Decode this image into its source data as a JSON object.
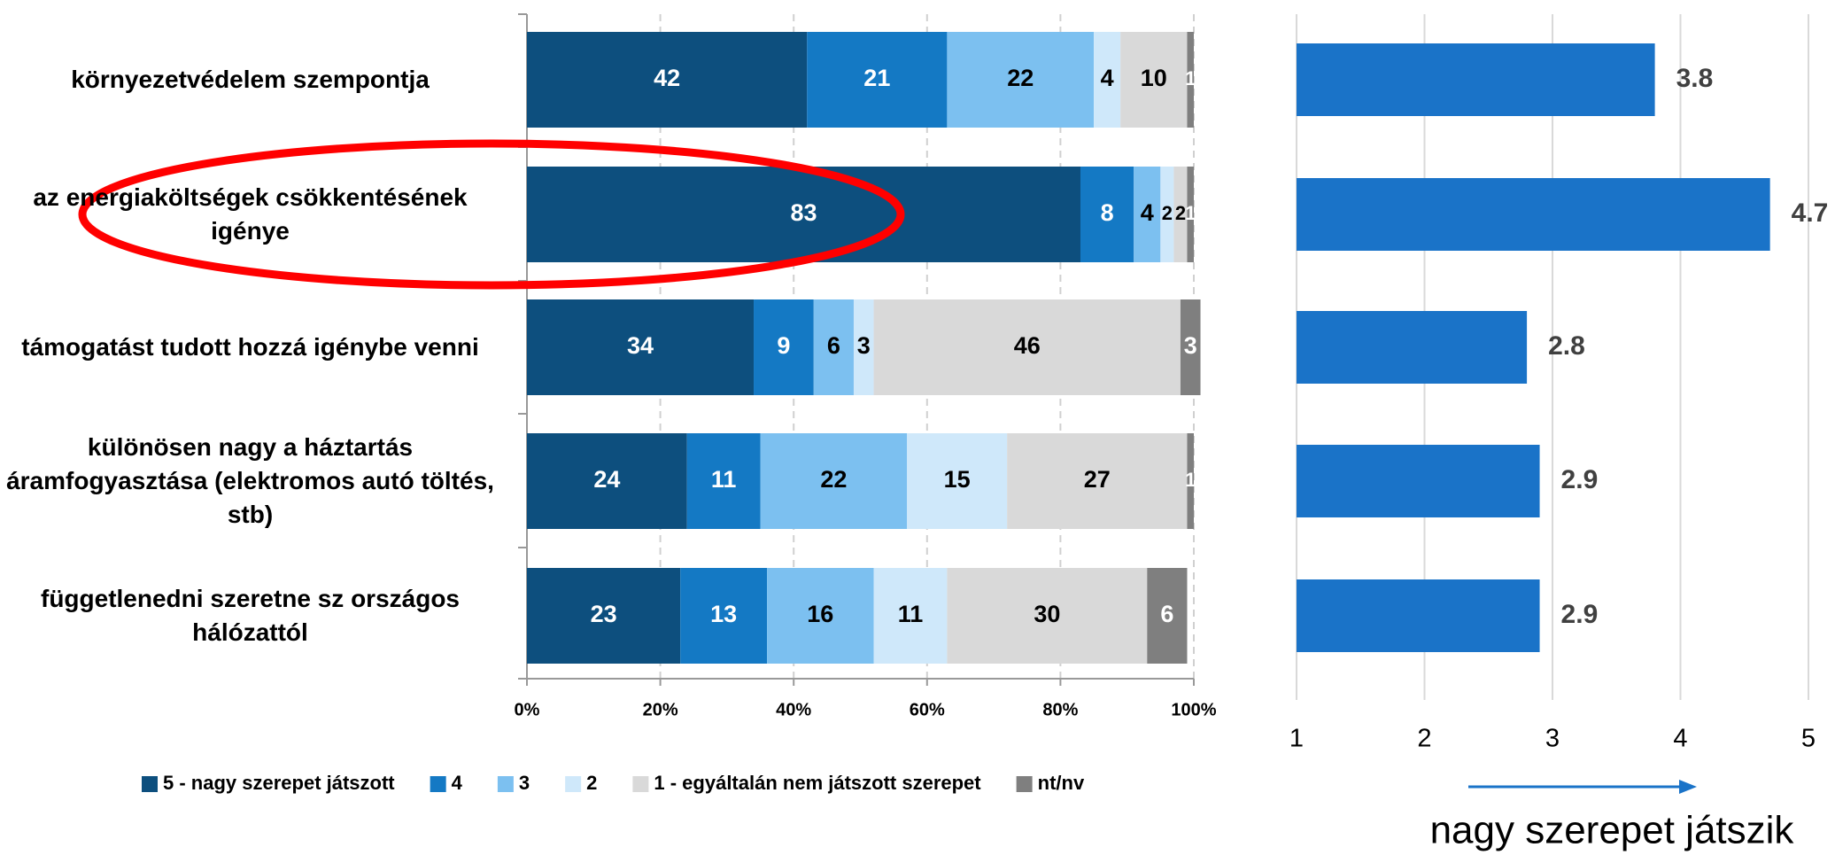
{
  "chart_data": [
    {
      "type": "stacked-bar",
      "categories": [
        "környezetvédelem szempontja",
        "az energiaköltségek csökkentésének igénye",
        "támogatást tudott hozzá igénybe venni",
        "különösen nagy a háztartás áramfogyasztása (elektromos autó töltés, stb)",
        "függetlenedni szeretne sz országos hálózattól"
      ],
      "series": [
        {
          "name": "5 - nagy szerepet játszott",
          "color": "#0d4f7e",
          "values": [
            42,
            83,
            34,
            24,
            23
          ]
        },
        {
          "name": "4",
          "color": "#1479c4",
          "values": [
            21,
            8,
            9,
            11,
            13
          ]
        },
        {
          "name": "3",
          "color": "#7cc0f0",
          "values": [
            22,
            4,
            6,
            22,
            16
          ]
        },
        {
          "name": "2",
          "color": "#cfe8fa",
          "values": [
            4,
            2,
            3,
            15,
            11
          ]
        },
        {
          "name": "1 - egyáltalán nem játszott szerepet",
          "color": "#d9d9d9",
          "values": [
            10,
            2,
            46,
            27,
            30
          ]
        },
        {
          "name": "nt/nv",
          "color": "#7f7f7f",
          "values": [
            1,
            1,
            3,
            1,
            6
          ]
        }
      ],
      "xlim": [
        0,
        100
      ],
      "xticks": [
        {
          "value": 0,
          "label": "0%"
        },
        {
          "value": 20,
          "label": "20%"
        },
        {
          "value": 40,
          "label": "40%"
        },
        {
          "value": 60,
          "label": "60%"
        },
        {
          "value": 80,
          "label": "80%"
        },
        {
          "value": 100,
          "label": "100%"
        }
      ],
      "grid": true,
      "legend": "bottom"
    },
    {
      "type": "bar",
      "values": [
        3.8,
        4.7,
        2.8,
        2.9,
        2.9
      ],
      "color": "#1a73c8",
      "xlim": [
        1,
        5
      ],
      "xticks": [
        1,
        2,
        3,
        4,
        5
      ],
      "grid": true,
      "xlabel": "nagy szerepet játszik"
    }
  ]
}
